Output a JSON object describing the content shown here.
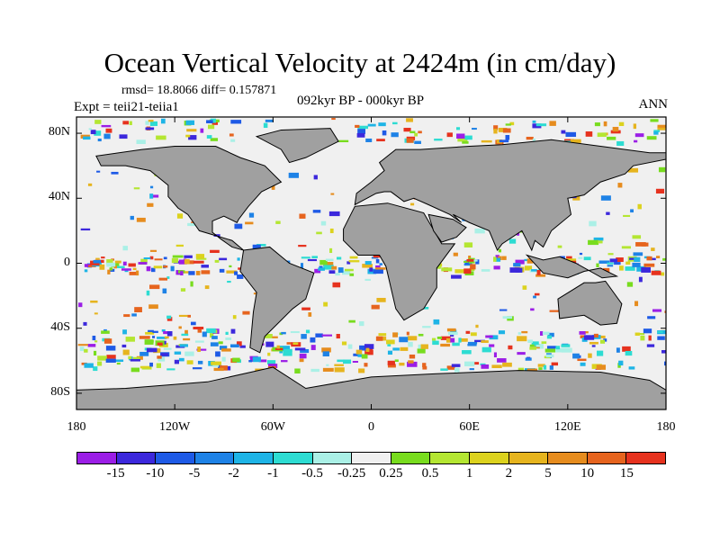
{
  "title": "Ocean Vertical Velocity at 2424m (in cm/day)",
  "stats": "rmsd= 18.8066 diff= 0.157871",
  "experiment": "Expt = teii21-teiia1",
  "period": "092kyr BP - 000kyr BP",
  "season": "ANN",
  "lat_labels": [
    "80N",
    "40N",
    "0",
    "40S",
    "80S"
  ],
  "lon_labels": [
    "180",
    "120W",
    "60W",
    "0",
    "60E",
    "120E",
    "180"
  ],
  "colorbar": {
    "labels": [
      "-15",
      "-10",
      "-5",
      "-2",
      "-1",
      "-0.5",
      "-0.25",
      "0.25",
      "0.5",
      "1",
      "2",
      "5",
      "10",
      "15"
    ],
    "colors": [
      "#9b1ee6",
      "#3c28dc",
      "#1e5ae6",
      "#1e82e6",
      "#1eb4e6",
      "#2ddcd2",
      "#aaf0e6",
      "#f0f0f0",
      "#78dc1e",
      "#b4e632",
      "#dcd21e",
      "#e6b41e",
      "#e68c1e",
      "#e6641e",
      "#e6321e"
    ]
  },
  "land_color": "#a0a0a0"
}
